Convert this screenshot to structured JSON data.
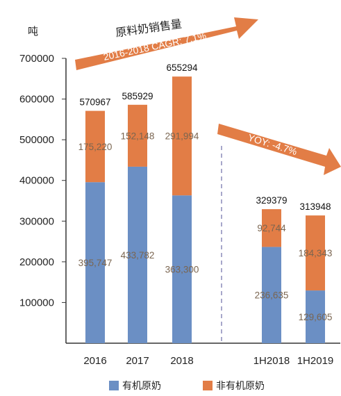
{
  "chart_data": {
    "type": "bar",
    "stacked": true,
    "title": "原料奶销售量",
    "unit_label": "吨",
    "categories": [
      "2016",
      "2017",
      "2018",
      "1H2018",
      "1H2019"
    ],
    "series": [
      {
        "name": "有机原奶",
        "color": "#6b8fc4",
        "values": [
          395747,
          433782,
          363300,
          236635,
          129605
        ],
        "labels": [
          "395,747",
          "433,782",
          "363,300",
          "236,635",
          "129,605"
        ]
      },
      {
        "name": "非有机原奶",
        "color": "#e27d46",
        "values": [
          175220,
          152148,
          291994,
          92744,
          184343
        ],
        "labels": [
          "175,220",
          "152,148",
          "291,994",
          "92,744",
          "184,343"
        ]
      }
    ],
    "totals": [
      "570967",
      "585929",
      "655294",
      "329379",
      "313948"
    ],
    "yticks": [
      "700000",
      "600000",
      "500000",
      "400000",
      "300000",
      "200000",
      "100000"
    ],
    "ylim": [
      0,
      700000
    ],
    "annotations": [
      "2016-2018 CAGR: 7.1%",
      "YOY: -4.7%"
    ],
    "legend_position": "bottom",
    "grid": false
  }
}
